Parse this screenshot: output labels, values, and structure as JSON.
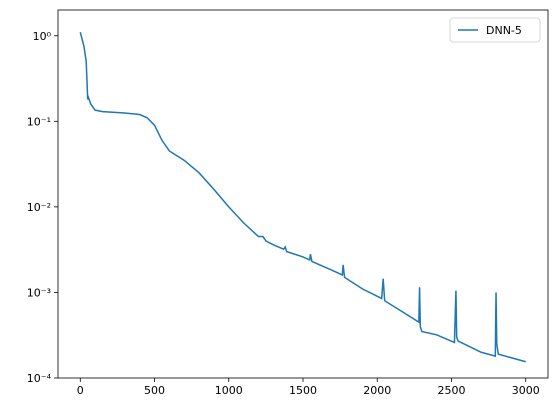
{
  "chart_data": {
    "type": "line",
    "log_y": true,
    "legend": "upper right",
    "x": [
      0,
      25,
      40,
      50,
      55,
      70,
      100,
      150,
      300,
      400,
      450,
      500,
      550,
      600,
      700,
      800,
      900,
      1000,
      1100,
      1200,
      1230,
      1250,
      1300,
      1370,
      1380,
      1390,
      1500,
      1545,
      1550,
      1560,
      1700,
      1765,
      1770,
      1780,
      1900,
      2030,
      2040,
      2050,
      2200,
      2280,
      2285,
      2290,
      2300,
      2400,
      2520,
      2530,
      2535,
      2545,
      2700,
      2795,
      2800,
      2805,
      2815,
      3000
    ],
    "series": [
      {
        "name": "DNN-5",
        "color": "#1f77b4",
        "values": [
          1.1,
          0.75,
          0.5,
          0.18,
          0.19,
          0.16,
          0.135,
          0.13,
          0.125,
          0.12,
          0.11,
          0.09,
          0.06,
          0.045,
          0.035,
          0.025,
          0.016,
          0.01,
          0.0065,
          0.0045,
          0.0045,
          0.004,
          0.0036,
          0.0032,
          0.0034,
          0.003,
          0.0026,
          0.0024,
          0.0028,
          0.0023,
          0.0018,
          0.0016,
          0.0021,
          0.0015,
          0.0011,
          0.00085,
          0.00145,
          0.0008,
          0.00055,
          0.00045,
          0.00115,
          0.0004,
          0.00035,
          0.00032,
          0.00026,
          0.00105,
          0.0003,
          0.00027,
          0.0002,
          0.00018,
          0.001,
          0.00025,
          0.00019,
          0.000155
        ]
      }
    ],
    "xlim": [
      -150,
      3150
    ],
    "xticks": [
      0,
      500,
      1000,
      1500,
      2000,
      2500,
      3000
    ],
    "ylim": [
      0.0001,
      2
    ],
    "yticks": [
      {
        "value": 0.0001,
        "label": "10⁻⁴"
      },
      {
        "value": 0.001,
        "label": "10⁻³"
      },
      {
        "value": 0.01,
        "label": "10⁻²"
      },
      {
        "value": 0.1,
        "label": "10⁻¹"
      },
      {
        "value": 1,
        "label": "10⁰"
      }
    ]
  }
}
